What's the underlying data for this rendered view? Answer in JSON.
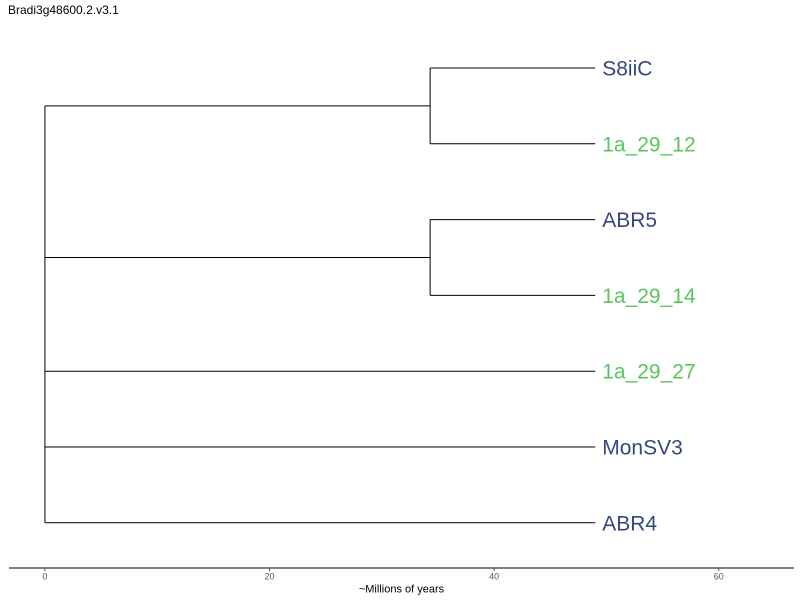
{
  "title": "Bradi3g48600.2.v3.1",
  "colors": {
    "group_blue": "#34497a",
    "group_green": "#5bc45f",
    "branch": "#000000"
  },
  "tree": {
    "leaves": [
      {
        "id": "S8iiC",
        "label": "S8iiC",
        "color": "#34497a"
      },
      {
        "id": "1a_29_12",
        "label": "1a_29_12",
        "color": "#5bc45f"
      },
      {
        "id": "ABR5",
        "label": "ABR5",
        "color": "#34497a"
      },
      {
        "id": "1a_29_14",
        "label": "1a_29_14",
        "color": "#5bc45f"
      },
      {
        "id": "1a_29_27",
        "label": "1a_29_27",
        "color": "#5bc45f"
      },
      {
        "id": "MonSV3",
        "label": "MonSV3",
        "color": "#34497a"
      },
      {
        "id": "ABR4",
        "label": "ABR4",
        "color": "#34497a"
      }
    ],
    "clades": [
      {
        "children": [
          "S8iiC",
          "1a_29_12"
        ],
        "time": 34.3
      },
      {
        "children": [
          "ABR5",
          "1a_29_14"
        ],
        "time": 34.3
      }
    ],
    "root_time": 0,
    "tip_time": 49.0
  },
  "axis": {
    "label": "~Millions of years",
    "range": [
      -3.2,
      66.7
    ],
    "ticks": [
      {
        "value": 0,
        "label": "0"
      },
      {
        "value": 20,
        "label": "20"
      },
      {
        "value": 40,
        "label": "40"
      },
      {
        "value": 60,
        "label": "60"
      }
    ]
  }
}
